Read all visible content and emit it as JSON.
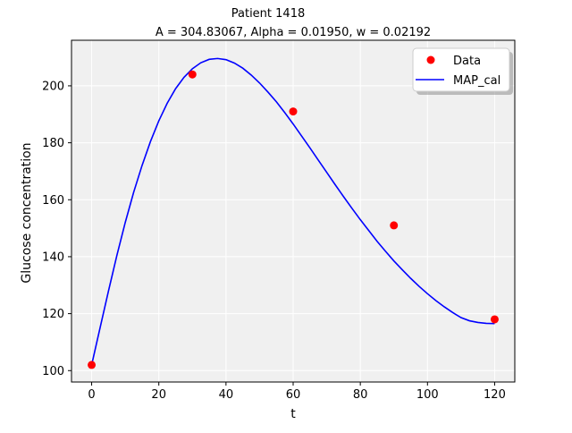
{
  "chart_data": {
    "type": "line",
    "suptitle": "Patient 1418",
    "title": "A = 304.83067, Alpha = 0.01950, w = 0.02192",
    "xlabel": "t",
    "ylabel": "Glucose concentration",
    "xlim": [
      -6,
      126
    ],
    "ylim": [
      96,
      216
    ],
    "xticks": [
      0,
      20,
      40,
      60,
      80,
      100,
      120
    ],
    "yticks": [
      100,
      120,
      140,
      160,
      180,
      200
    ],
    "grid": true,
    "legend_position": "top-right",
    "series": [
      {
        "name": "Data",
        "kind": "scatter",
        "color": "#ff0000",
        "x": [
          0,
          30,
          60,
          90,
          120
        ],
        "y": [
          102,
          204,
          191,
          151,
          118
        ]
      },
      {
        "name": "MAP_cal",
        "kind": "line",
        "color": "#0000ff",
        "x": [
          0,
          2.5,
          5,
          7.5,
          10,
          12.5,
          15,
          17.5,
          20,
          22.5,
          25,
          27.5,
          30,
          32.5,
          35,
          37.5,
          40,
          42.5,
          45,
          47.5,
          50,
          52.5,
          55,
          57.5,
          60,
          62.5,
          65,
          67.5,
          70,
          72.5,
          75,
          77.5,
          80,
          82.5,
          85,
          87.5,
          90,
          92.5,
          95,
          97.5,
          100,
          102.5,
          105,
          107.5,
          110,
          112.5,
          115,
          117.5,
          120
        ],
        "y": [
          102.0,
          115.0,
          127.9,
          140.4,
          152.0,
          162.6,
          172.0,
          180.4,
          187.7,
          193.9,
          199.0,
          203.0,
          206.0,
          208.1,
          209.3,
          209.6,
          209.2,
          208.0,
          206.2,
          203.8,
          201.0,
          197.8,
          194.4,
          190.6,
          186.6,
          182.4,
          178.2,
          173.9,
          169.6,
          165.3,
          161.1,
          157.0,
          153.0,
          149.2,
          145.4,
          141.9,
          138.5,
          135.4,
          132.4,
          129.6,
          127.0,
          124.6,
          122.4,
          120.4,
          118.6,
          117.5,
          116.9,
          116.6,
          116.5
        ]
      }
    ]
  }
}
